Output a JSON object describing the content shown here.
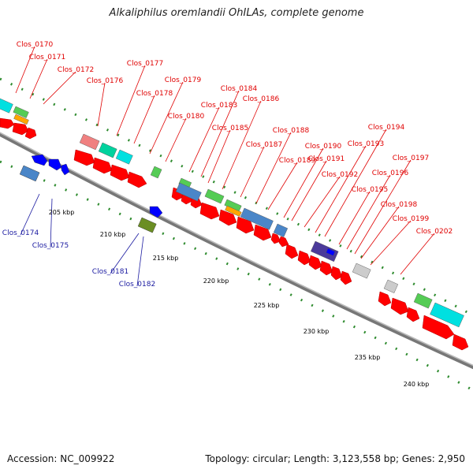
{
  "title": "Alkaliphilus oremlandii OhILAs, complete genome",
  "footer": {
    "accession": "Accession: NC_009922",
    "stats": "Topology: circular; Length: 3,123,558 bp; Genes: 2,950"
  },
  "colors": {
    "forward_label": "#e00000",
    "reverse_label": "#1a1aa0",
    "cds_arrow": "#ff0000",
    "backbone": "#888888",
    "tick": "#228b22"
  },
  "kbp_ticks": [
    "205 kbp",
    "210 kbp",
    "215 kbp",
    "220 kbp",
    "225 kbp",
    "230 kbp",
    "235 kbp",
    "240 kbp"
  ],
  "forward_genes": [
    "Clos_0170",
    "Clos_0171",
    "Clos_0172",
    "Clos_0176",
    "Clos_0177",
    "Clos_0178",
    "Clos_0179",
    "Clos_0180",
    "Clos_0183",
    "Clos_0184",
    "Clos_0185",
    "Clos_0186",
    "Clos_0187",
    "Clos_0188",
    "Clos_0189",
    "Clos_0190",
    "Clos_0191",
    "Clos_0192",
    "Clos_0193",
    "Clos_0194",
    "Clos_0195",
    "Clos_0196",
    "Clos_0197",
    "Clos_0198",
    "Clos_0199",
    "Clos_0202"
  ],
  "reverse_genes": [
    "Clos_0174",
    "Clos_0175",
    "Clos_0181",
    "Clos_0182"
  ]
}
